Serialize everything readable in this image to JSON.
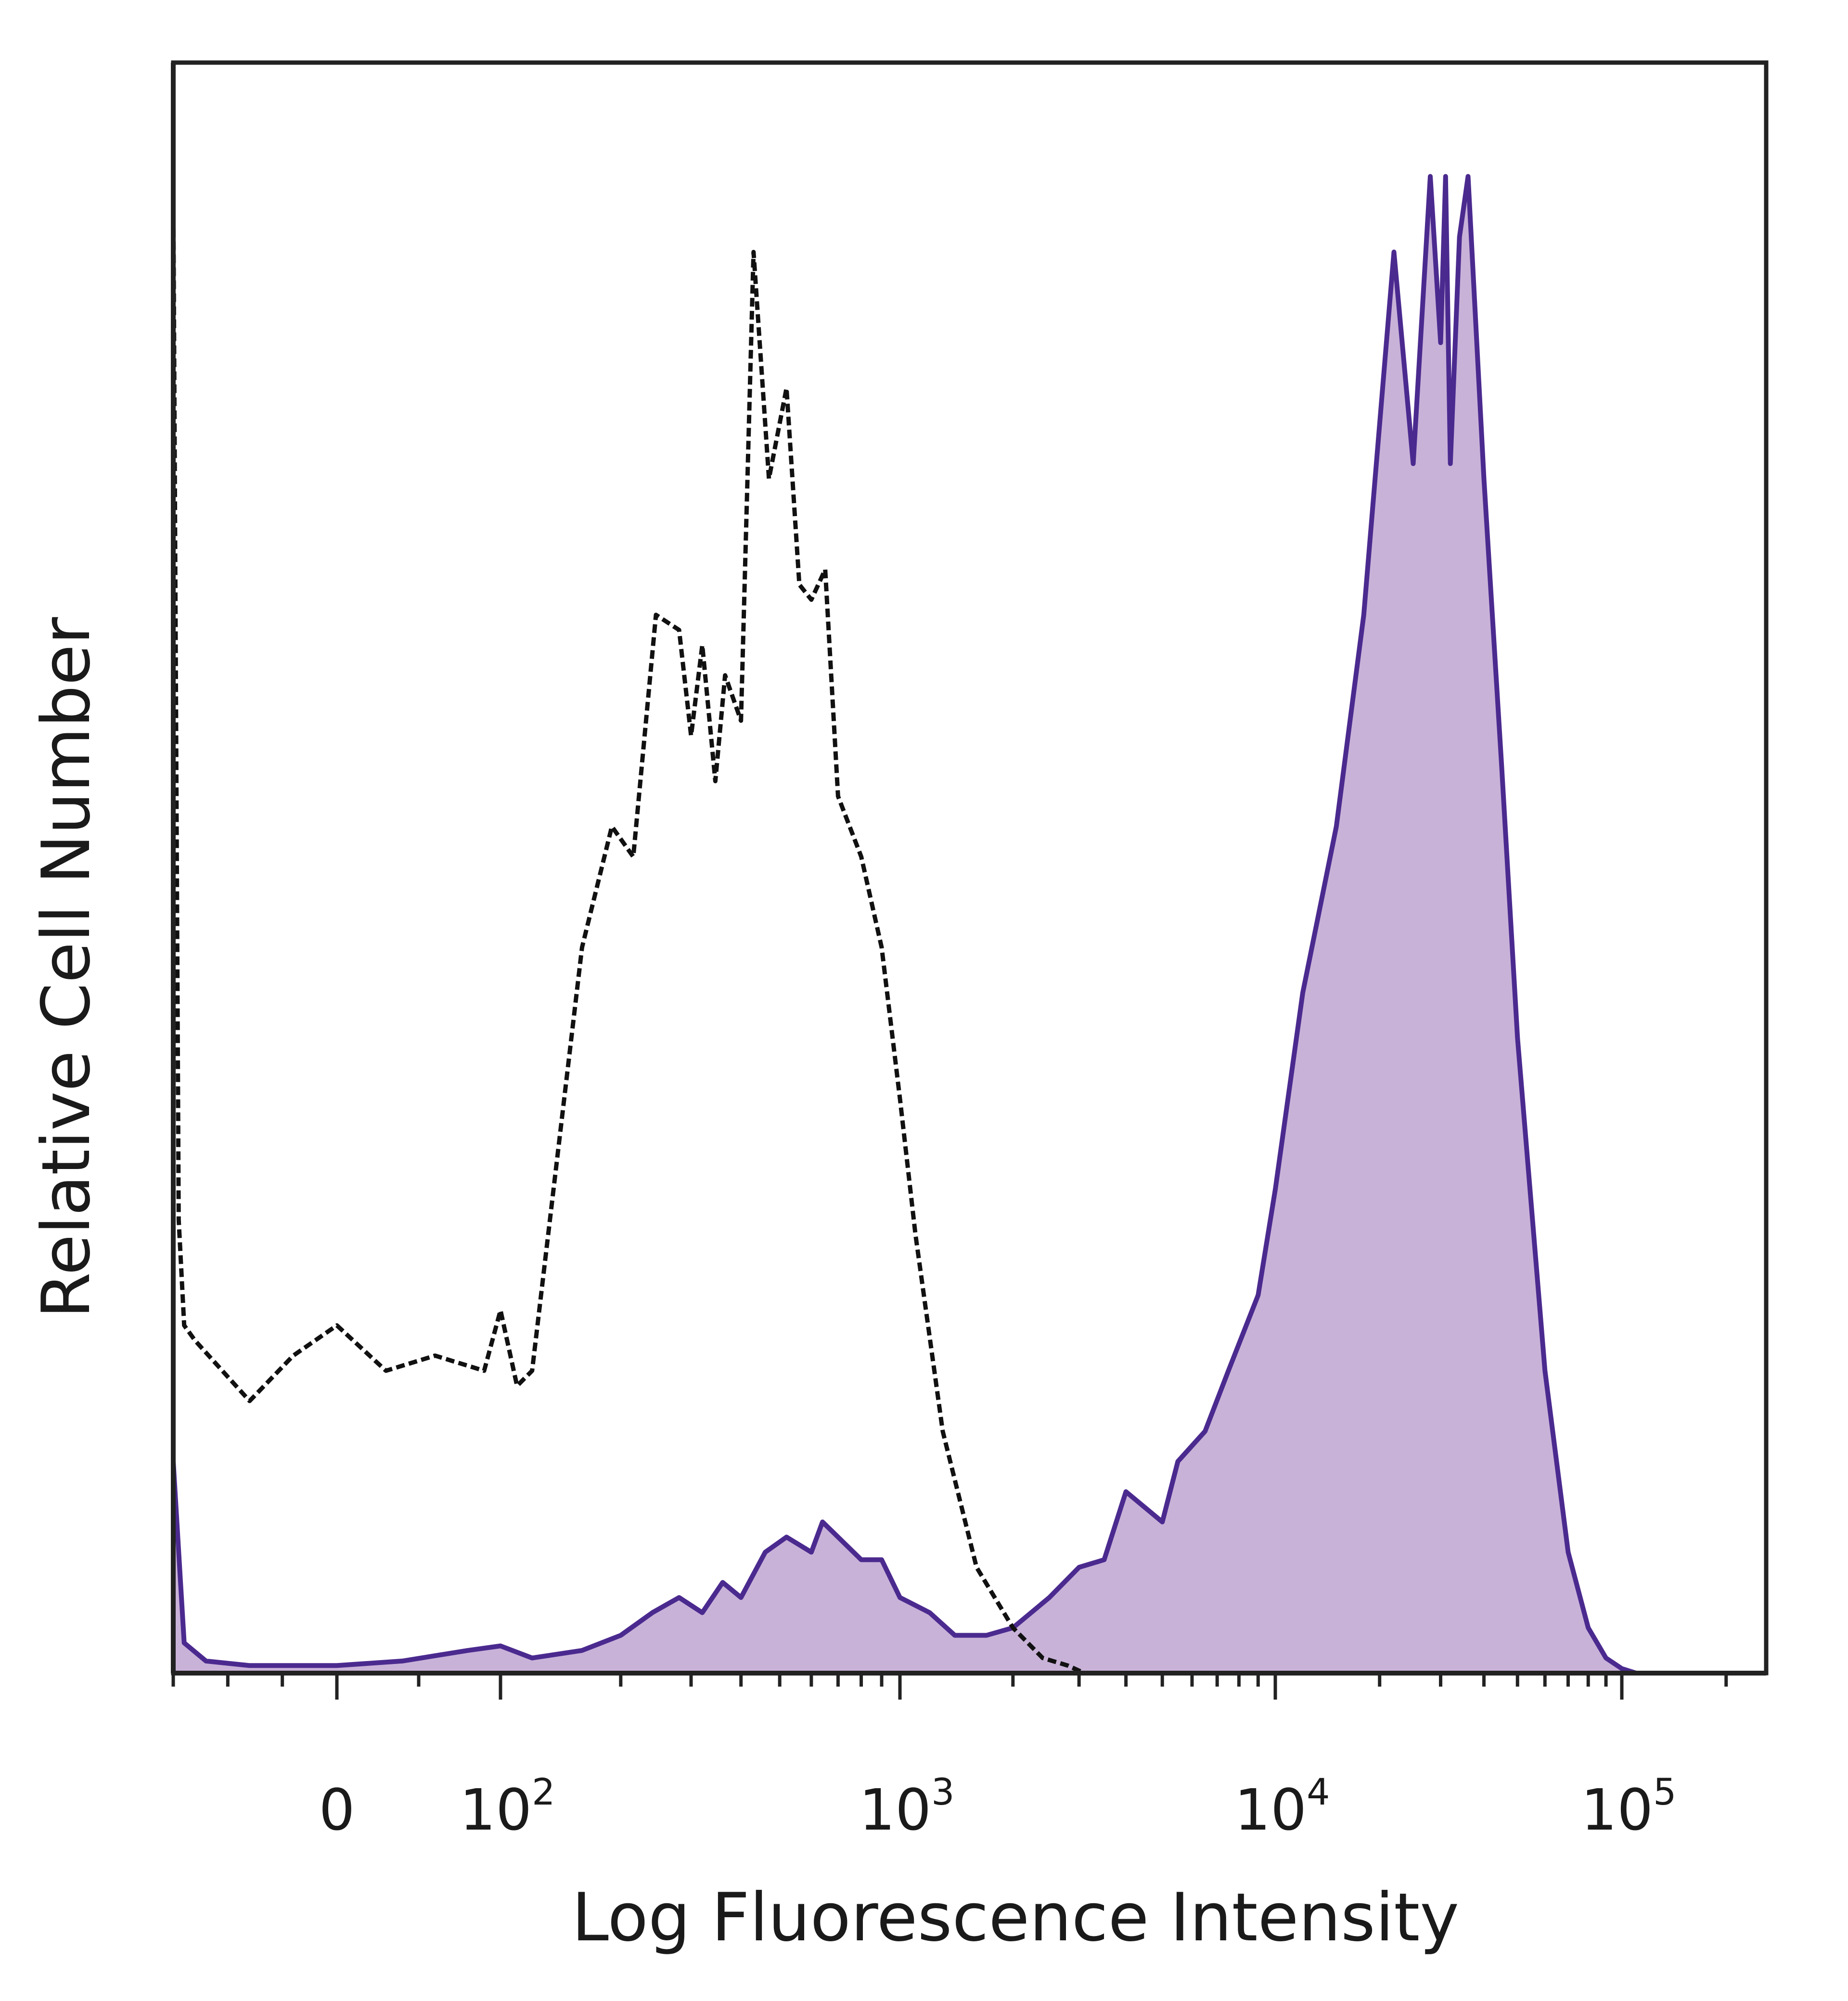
{
  "chart_data": {
    "type": "area",
    "title": "",
    "xlabel": "Log Fluorescence Intensity",
    "ylabel": "Relative Cell Number",
    "x_scale": "biexponential (linear near 0, logarithmic above 10^2)",
    "xlim": [
      -150,
      250000
    ],
    "ylim": [
      0,
      100
    ],
    "grid": false,
    "legend": "none",
    "x_ticks": [
      {
        "value": 0,
        "label": "0"
      },
      {
        "value": 100,
        "base": "10",
        "exp": "2"
      },
      {
        "value": 1000,
        "base": "10",
        "exp": "3"
      },
      {
        "value": 10000,
        "base": "10",
        "exp": "4"
      },
      {
        "value": 100000,
        "base": "10",
        "exp": "5"
      }
    ],
    "series": [
      {
        "style": "dashed-black-line",
        "color": "#111111",
        "x": [
          -150,
          -145,
          -140,
          -130,
          -80,
          -40,
          0,
          30,
          60,
          90,
          100,
          110,
          120,
          140,
          160,
          190,
          215,
          245,
          280,
          300,
          320,
          345,
          365,
          400,
          430,
          470,
          520,
          560,
          600,
          650,
          700,
          800,
          900,
          1000,
          1100,
          1300,
          1600,
          2000,
          2400,
          2800,
          3100,
          3500
        ],
        "y": [
          99,
          30,
          23,
          22,
          18,
          21,
          23,
          20,
          21,
          20,
          24,
          19,
          20,
          35,
          48,
          56,
          54,
          70,
          69,
          62,
          68,
          59,
          66,
          63,
          94,
          79,
          85,
          72,
          71,
          73,
          58,
          54,
          48,
          38,
          29,
          16,
          7,
          3,
          1,
          0.5,
          0,
          0
        ]
      },
      {
        "style": "purple-filled-area",
        "color": "#4b2a8f",
        "fill": "#c9b2d8",
        "x": [
          -150,
          -140,
          -120,
          -80,
          0,
          40,
          80,
          100,
          120,
          160,
          200,
          240,
          280,
          320,
          360,
          400,
          460,
          520,
          600,
          640,
          700,
          800,
          900,
          1000,
          1200,
          1400,
          1700,
          2000,
          2500,
          3000,
          3500,
          4000,
          5000,
          5500,
          6500,
          7500,
          9000,
          10000,
          12000,
          15000,
          18000,
          22000,
          25000,
          28000,
          30000,
          31000,
          32000,
          34000,
          36000,
          40000,
          45000,
          50000,
          60000,
          70000,
          80000,
          90000,
          100000,
          110000
        ],
        "y": [
          14,
          2,
          0.8,
          0.5,
          0.5,
          0.8,
          1.5,
          1.8,
          1,
          1.5,
          2.5,
          4,
          5,
          4,
          6,
          5,
          8,
          9,
          8,
          10,
          9,
          7.5,
          7.5,
          5,
          4,
          2.5,
          2.5,
          3,
          5,
          7,
          7.5,
          12,
          10,
          14,
          16,
          20,
          25,
          32,
          45,
          56,
          70,
          94,
          80,
          99,
          88,
          99,
          80,
          95,
          99,
          79,
          60,
          42,
          20,
          8,
          3,
          1,
          0.3,
          0
        ]
      }
    ]
  }
}
